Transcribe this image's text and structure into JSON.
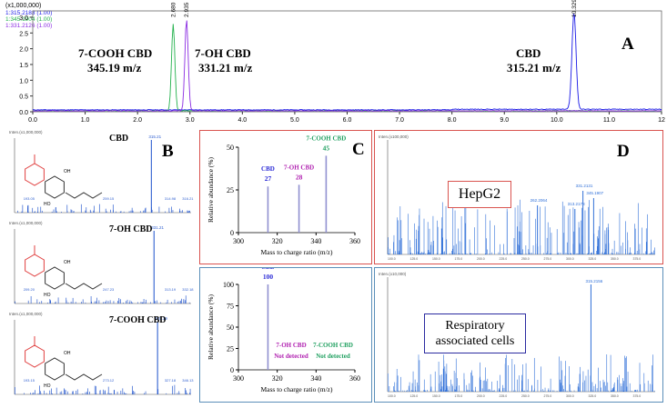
{
  "chromatogram": {
    "y_multiplier": "(x1,000,000)",
    "legend": [
      {
        "label": "1:315.2183 (1.00)",
        "color": "#1a1ae6"
      },
      {
        "label": "1:345.1904 (1.00)",
        "color": "#22b14c"
      },
      {
        "label": "1:331.2126 (1.00)",
        "color": "#8a2be2"
      }
    ],
    "y_ticks": [
      "0.0",
      "0.5",
      "1.0",
      "1.5",
      "2.0",
      "2.5",
      "3.0"
    ],
    "x_ticks": [
      "0.0",
      "1.0",
      "2.0",
      "3.0",
      "4.0",
      "5.0",
      "6.0",
      "7.0",
      "8.0",
      "9.0",
      "10.0",
      "11.0",
      "12"
    ],
    "peak_labels": [
      {
        "text": "2.680",
        "x": 2.68
      },
      {
        "text": "2.935",
        "x": 2.935
      },
      {
        "text": "10.329",
        "x": 10.329
      }
    ],
    "annotations": [
      {
        "name": "7-COOH CBD",
        "mz": "345.19 m/z"
      },
      {
        "name": "7-OH CBD",
        "mz": "331.21 m/z"
      },
      {
        "name": "CBD",
        "mz": "315.21 m/z"
      }
    ],
    "panel_letter": "A"
  },
  "panel_b": {
    "letter": "B",
    "spectra": [
      {
        "title": "CBD",
        "header": "Inten.(x1,000,000)",
        "peak_label": "315.21",
        "small_labels": [
          "193.05",
          "259.15",
          "314.98",
          "316.21"
        ]
      },
      {
        "title": "7-OH CBD",
        "header": "Inten.(x1,000,000)",
        "peak_label": "331.21",
        "small_labels": [
          "209.20",
          "247.23",
          "313.19",
          "332.18"
        ]
      },
      {
        "title": "7-COOH CBD",
        "header": "Inten.(x1,000,000)",
        "peak_label": "345.19",
        "small_labels": [
          "193.15",
          "273.12",
          "327.18",
          "346.13"
        ]
      }
    ]
  },
  "panel_c": {
    "letter": "C",
    "ylabel": "Relative abundance (%)",
    "xlabel": "Mass to charge ratio (m/z)",
    "y_ticks_top": [
      "0",
      "25",
      "50"
    ],
    "y_ticks_bottom": [
      "0",
      "25",
      "50",
      "75",
      "100"
    ],
    "x_ticks": [
      "300",
      "320",
      "340",
      "360"
    ]
  },
  "panel_d": {
    "letter": "D",
    "header_top": "Inten.(x100,000)",
    "header_bottom": "Inten.(x10,000)",
    "top_box": "HepG2",
    "bottom_box_line1": "Respiratory",
    "bottom_box_line2": "associated cells",
    "top_peak_labels": [
      "331.2131",
      "345.1907",
      "313.2178",
      "262.2064"
    ],
    "bottom_peak_labels": [
      "315.2156"
    ]
  },
  "chart_data": [
    {
      "type": "line",
      "title": "",
      "xlabel": "",
      "ylabel": "",
      "xlim": [
        0,
        12
      ],
      "ylim": [
        0,
        3.2
      ],
      "series": [
        {
          "name": "1:315.2183 (1.00)",
          "peaks": [
            {
              "x": 10.329,
              "y": 3.1
            }
          ]
        },
        {
          "name": "1:345.1904 (1.00)",
          "peaks": [
            {
              "x": 2.68,
              "y": 2.75
            }
          ]
        },
        {
          "name": "1:331.2126 (1.00)",
          "peaks": [
            {
              "x": 2.935,
              "y": 2.9
            }
          ]
        }
      ]
    },
    {
      "type": "bar",
      "title": "",
      "xlabel": "Mass to charge ratio (m/z)",
      "ylabel": "Relative abundance (%)",
      "xlim": [
        300,
        360
      ],
      "ylim": [
        0,
        50
      ],
      "bars": [
        {
          "label": "CBD",
          "x": 315.21,
          "value": 27,
          "color": "#2b2bd6"
        },
        {
          "label": "7-OH CBD",
          "x": 331.21,
          "value": 28,
          "color": "#b020b0"
        },
        {
          "label": "7-COOH CBD",
          "x": 345.19,
          "value": 45,
          "color": "#20a060"
        }
      ]
    },
    {
      "type": "bar",
      "title": "",
      "xlabel": "Mass to charge ratio (m/z)",
      "ylabel": "Relative abundance (%)",
      "xlim": [
        300,
        360
      ],
      "ylim": [
        0,
        100
      ],
      "bars": [
        {
          "label": "CBD",
          "x": 315.21,
          "value": 100,
          "color": "#2b2bd6"
        }
      ],
      "not_detected": [
        {
          "label": "7-OH CBD",
          "note": "Not detected",
          "color": "#b020b0"
        },
        {
          "label": "7-COOH CBD",
          "note": "Not detected",
          "color": "#20a060"
        }
      ]
    }
  ]
}
